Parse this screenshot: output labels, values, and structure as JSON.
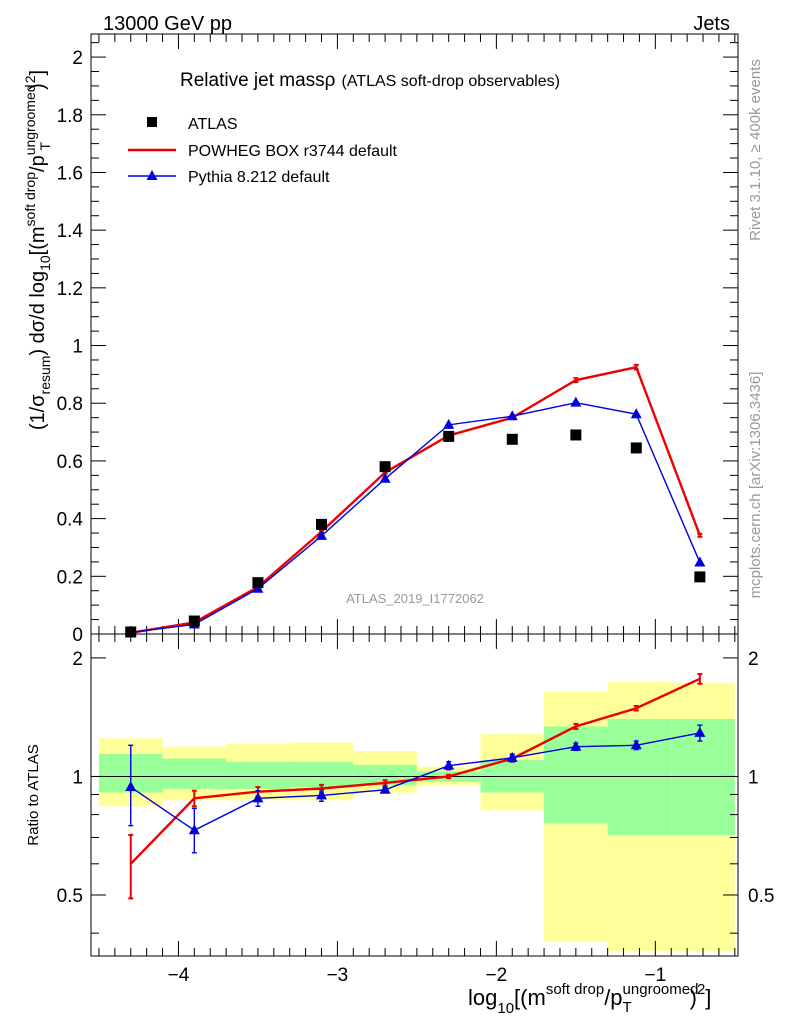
{
  "header": {
    "energy_label": "13000 GeV pp",
    "category_label": "Jets"
  },
  "side_texts": {
    "rivet": "Rivet 3.1.10, ≥ 400k events",
    "mcplots": "mcplots.cern.ch [arXiv:1306.3436]"
  },
  "plot_title": {
    "main": "Relative jet massρ",
    "sub": "(ATLAS soft-drop observables)"
  },
  "analysis_id": "ATLAS_2019_I1772062",
  "colors": {
    "data": "#000000",
    "powheg": "#ee0000",
    "pythia": "#0000dd",
    "band_inner": "#99ff99",
    "band_outer": "#ffff99"
  },
  "axis_labels": {
    "y_main_prefix": "(1/σ",
    "y_main_sub1": "resum",
    "y_main_mid": ") dσ/d log",
    "y_main_sub2": "10",
    "y_main_open": "[(m",
    "y_main_sup1": "soft drop",
    "y_main_slash": "/p",
    "y_main_sup2": "ungroomed",
    "y_main_sub3": "T",
    "y_main_close": ")",
    "y_main_sup3": "2",
    "y_main_end": "]",
    "y_ratio": "Ratio to ATLAS",
    "x_log": "log",
    "x_sub": "10",
    "x_open": "[(m",
    "x_sup1": "soft drop",
    "x_slash": "/p",
    "x_sup2": "ungroomed",
    "x_sub2": "T",
    "x_close": ")",
    "x_sup3": "2",
    "x_end": "]"
  },
  "chart_data": [
    {
      "type": "scatter",
      "panel": "main",
      "title": "Relative jet massρ (ATLAS soft-drop observables)",
      "xlim": [
        -4.55,
        -0.48
      ],
      "ylim": [
        0,
        2.08
      ],
      "y_ticks": [
        0,
        0.2,
        0.4,
        0.6,
        0.8,
        1,
        1.2,
        1.4,
        1.6,
        1.8,
        2
      ],
      "y_tick_labels": [
        "0",
        "0.2",
        "0.4",
        "0.6",
        "0.8",
        "1",
        "1.2",
        "1.4",
        "1.6",
        "1.8",
        "2"
      ],
      "bin_edges": [
        -4.5,
        -4.1,
        -3.7,
        -3.3,
        -2.9,
        -2.5,
        -2.1,
        -1.7,
        -1.3,
        -0.9,
        -0.5
      ],
      "x": [
        -4.3,
        -3.9,
        -3.5,
        -3.1,
        -2.7,
        -2.3,
        -1.9,
        -1.5,
        -1.12,
        -0.72
      ],
      "series": [
        {
          "name": "ATLAS",
          "kind": "data",
          "values": [
            0.007,
            0.045,
            0.178,
            0.38,
            0.58,
            0.685,
            0.675,
            0.69,
            0.645,
            0.198
          ]
        },
        {
          "name": "POWHEG BOX r3744 default",
          "kind": "line",
          "values": [
            0.004,
            0.04,
            0.163,
            0.355,
            0.56,
            0.688,
            0.75,
            0.88,
            0.925,
            0.342
          ],
          "errors": [
            0.001,
            0.002,
            0.003,
            0.004,
            0.004,
            0.004,
            0.005,
            0.007,
            0.008,
            0.005
          ]
        },
        {
          "name": "Pythia 8.212 default",
          "kind": "line-triangle",
          "values": [
            0.006,
            0.033,
            0.157,
            0.34,
            0.538,
            0.725,
            0.755,
            0.802,
            0.762,
            0.248
          ],
          "errors": [
            0.002,
            0.003,
            0.005,
            0.008,
            0.01,
            0.012,
            0.013,
            0.013,
            0.014,
            0.008
          ]
        }
      ]
    },
    {
      "type": "line",
      "panel": "ratio",
      "ylabel": "Ratio to ATLAS",
      "xlabel": "log10[(m soft drop / pT ungroomed)2]",
      "xlim": [
        -4.55,
        -0.48
      ],
      "ylim": [
        0.35,
        2.3
      ],
      "scale": "log",
      "x_ticks": [
        -4,
        -3,
        -2,
        -1
      ],
      "x_tick_labels": [
        "−4",
        "−3",
        "−2",
        "−1"
      ],
      "y_ticks": [
        0.5,
        1,
        2
      ],
      "y_tick_labels": [
        "0.5",
        "1",
        "2"
      ],
      "reference": 1,
      "bin_edges": [
        -4.5,
        -4.1,
        -3.7,
        -3.3,
        -2.9,
        -2.5,
        -2.1,
        -1.7,
        -1.3,
        -0.9,
        -0.5
      ],
      "band_inner": [
        [
          0.91,
          1.14
        ],
        [
          0.93,
          1.11
        ],
        [
          0.93,
          1.09
        ],
        [
          0.94,
          1.09
        ],
        [
          0.95,
          1.07
        ],
        [
          0.97,
          1.03
        ],
        [
          0.91,
          1.1
        ],
        [
          0.76,
          1.34
        ],
        [
          0.71,
          1.4
        ],
        [
          0.71,
          1.4
        ]
      ],
      "band_outer": [
        [
          0.84,
          1.25
        ],
        [
          0.87,
          1.19
        ],
        [
          0.87,
          1.21
        ],
        [
          0.87,
          1.22
        ],
        [
          0.91,
          1.16
        ],
        [
          0.95,
          1.06
        ],
        [
          0.82,
          1.28
        ],
        [
          0.38,
          1.64
        ],
        [
          0.36,
          1.74
        ],
        [
          0.36,
          1.73
        ]
      ],
      "x": [
        -4.3,
        -3.9,
        -3.5,
        -3.1,
        -2.7,
        -2.3,
        -1.9,
        -1.5,
        -1.12,
        -0.72
      ],
      "series": [
        {
          "name": "POWHEG BOX r3744 default",
          "values": [
            0.6,
            0.88,
            0.915,
            0.932,
            0.963,
            1.0,
            1.11,
            1.34,
            1.49,
            1.77
          ],
          "err_lo": [
            0.11,
            0.04,
            0.025,
            0.02,
            0.015,
            0.01,
            0.02,
            0.02,
            0.02,
            0.05
          ],
          "err_hi": [
            0.11,
            0.04,
            0.025,
            0.02,
            0.015,
            0.01,
            0.02,
            0.02,
            0.02,
            0.05
          ]
        },
        {
          "name": "Pythia 8.212 default",
          "values": [
            0.94,
            0.73,
            0.88,
            0.895,
            0.925,
            1.065,
            1.115,
            1.19,
            1.2,
            1.29
          ],
          "err_lo": [
            0.19,
            0.09,
            0.04,
            0.03,
            0.015,
            0.025,
            0.025,
            0.025,
            0.03,
            0.06
          ],
          "err_hi": [
            0.26,
            0.1,
            0.04,
            0.03,
            0.015,
            0.025,
            0.025,
            0.025,
            0.03,
            0.06
          ]
        }
      ]
    }
  ]
}
